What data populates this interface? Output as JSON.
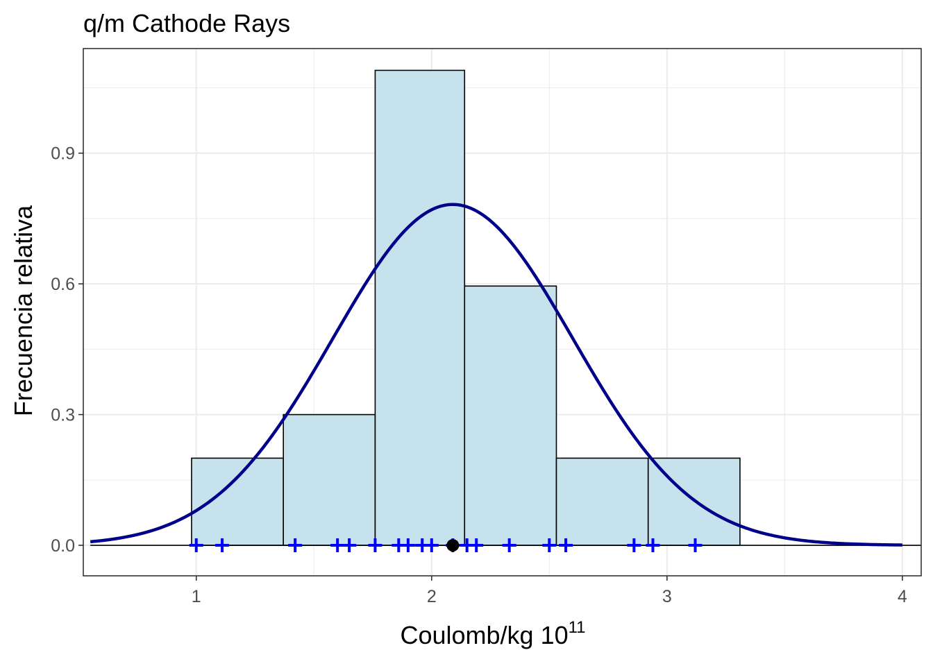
{
  "chart_data": {
    "type": "histogram",
    "title": "q/m Cathode Rays",
    "xlabel": "Coulomb/kg 10",
    "xlabel_superscript": "11",
    "ylabel": "Frecuencia relativa",
    "xlim": [
      0.52,
      4.08
    ],
    "ylim": [
      -0.07,
      1.14
    ],
    "x_ticks": [
      1,
      2,
      3,
      4
    ],
    "y_ticks": [
      0.0,
      0.3,
      0.6,
      0.9
    ],
    "x_tick_labels": [
      "1",
      "2",
      "3",
      "4"
    ],
    "y_tick_labels": [
      "0.0",
      "0.3",
      "0.6",
      "0.9"
    ],
    "grid": true,
    "bars": [
      {
        "x0": 0.98,
        "x1": 1.37,
        "density": 0.2
      },
      {
        "x0": 1.37,
        "x1": 1.76,
        "density": 0.3
      },
      {
        "x0": 1.76,
        "x1": 2.14,
        "density": 1.09
      },
      {
        "x0": 2.14,
        "x1": 2.53,
        "density": 0.595
      },
      {
        "x0": 2.53,
        "x1": 2.92,
        "density": 0.2
      },
      {
        "x0": 2.92,
        "x1": 3.31,
        "density": 0.2
      }
    ],
    "normal_curve": {
      "mean": 2.09,
      "sd": 0.51,
      "x_range": [
        0.55,
        4.0
      ]
    },
    "observations": [
      1.0,
      1.11,
      1.42,
      1.6,
      1.65,
      1.76,
      1.86,
      1.9,
      1.96,
      2.0,
      2.09,
      2.15,
      2.19,
      2.33,
      2.5,
      2.57,
      2.86,
      2.94,
      3.12
    ],
    "mean_point": 2.09,
    "colors": {
      "bar_fill": "#c6e2ed",
      "bar_stroke": "#000000",
      "curve": "#00008b",
      "observations": "#0000ff",
      "mean_point": "#000000",
      "grid": "#ebebeb",
      "panel_border": "#333333"
    }
  }
}
